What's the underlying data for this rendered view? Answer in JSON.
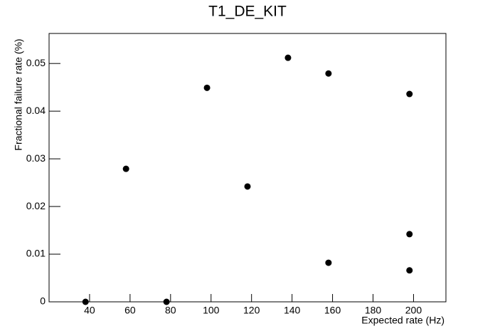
{
  "chart_data": {
    "type": "scatter",
    "title": "T1_DE_KIT",
    "x_label": "Expected rate (Hz)",
    "y_label": "Fractional failure rate (%)",
    "x": [
      38,
      58,
      78,
      98,
      118,
      138,
      158,
      158,
      198,
      198,
      198
    ],
    "values": [
      0,
      0.0279,
      0,
      0.0449,
      0.0242,
      0.0512,
      0.0479,
      0.0082,
      0.0436,
      0.0142,
      0.0066
    ],
    "color": "#000000",
    "xlim": [
      20,
      216
    ],
    "xticks": [
      40,
      60,
      80,
      100,
      120,
      140,
      160,
      180,
      200
    ],
    "ylim": [
      0,
      0.0563
    ],
    "yticks": [
      0,
      0.01,
      0.02,
      0.03,
      0.04,
      0.05
    ]
  }
}
